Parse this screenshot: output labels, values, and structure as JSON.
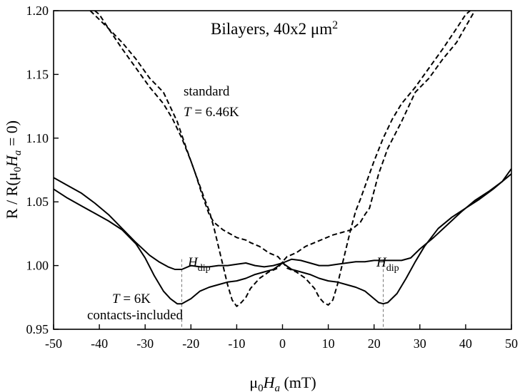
{
  "chart_data": {
    "type": "line",
    "title_parts": {
      "main": "Bilayers, 40x2 μm",
      "sup": "2"
    },
    "xlabel_parts": {
      "a": "μ",
      "b": "0",
      "c": "H",
      "d": "a",
      "e": " (mT)"
    },
    "ylabel_parts": {
      "a": "R / R(μ",
      "b": "0",
      "c": "H",
      "d": "a",
      "e": " = 0)"
    },
    "xlim": [
      -50,
      50
    ],
    "ylim": [
      0.95,
      1.2
    ],
    "xticks": [
      "-50",
      "-40",
      "-30",
      "-20",
      "-10",
      "0",
      "10",
      "20",
      "30",
      "40",
      "50"
    ],
    "yticks": [
      "0.95",
      "1.00",
      "1.05",
      "1.10",
      "1.15",
      "1.20"
    ],
    "xtick_values": [
      -50,
      -40,
      -30,
      -20,
      -10,
      0,
      10,
      20,
      30,
      40,
      50
    ],
    "ytick_values": [
      0.95,
      1.0,
      1.05,
      1.1,
      1.15,
      1.2
    ],
    "annotations": {
      "standard_label": "standard",
      "standard_temp": {
        "t": "T",
        "rest": " = 6.46K"
      },
      "contacts_temp": {
        "t": "T",
        "rest": " = 6K"
      },
      "contacts_label": "contacts-included",
      "hdip_main": "H",
      "hdip_sub": "dip"
    },
    "hdip_markers": [
      -22,
      22
    ],
    "series": [
      {
        "style": "dashed",
        "x": [
          -42,
          -38,
          -35,
          -32,
          -29,
          -26,
          -23,
          -21,
          -19,
          -17.5,
          -16,
          -15,
          -14,
          -13,
          -12,
          -11,
          -10,
          -9,
          -8,
          -7,
          -5,
          -3,
          -1,
          0,
          1,
          3,
          5,
          7,
          8,
          9,
          10,
          11,
          12,
          13,
          14,
          15,
          16,
          17,
          18,
          19,
          20,
          22,
          24,
          26,
          29,
          32,
          35,
          38,
          40,
          41
        ],
        "y": [
          1.2,
          1.186,
          1.175,
          1.162,
          1.147,
          1.136,
          1.113,
          1.092,
          1.072,
          1.055,
          1.04,
          1.034,
          1.031,
          1.028,
          1.026,
          1.024,
          1.022,
          1.021,
          1.02,
          1.018,
          1.015,
          1.01,
          1.007,
          1.003,
          0.998,
          0.995,
          0.99,
          0.982,
          0.975,
          0.971,
          0.969,
          0.973,
          0.985,
          1.0,
          1.015,
          1.03,
          1.043,
          1.052,
          1.062,
          1.072,
          1.082,
          1.1,
          1.115,
          1.127,
          1.14,
          1.155,
          1.17,
          1.186,
          1.197,
          1.2
        ]
      },
      {
        "style": "dashed",
        "x": [
          -41,
          -40,
          -38,
          -35,
          -32,
          -29,
          -26,
          -24,
          -22,
          -20,
          -19,
          -18,
          -17,
          -16,
          -15,
          -14,
          -13,
          -12,
          -11,
          -10,
          -9,
          -8,
          -7,
          -5,
          -3,
          -1,
          0,
          1,
          3,
          5,
          7,
          9,
          11,
          13,
          15,
          16,
          17,
          18,
          19,
          21,
          23,
          26,
          29,
          32,
          35,
          38,
          42
        ],
        "y": [
          1.2,
          1.197,
          1.186,
          1.17,
          1.155,
          1.14,
          1.127,
          1.115,
          1.1,
          1.082,
          1.072,
          1.062,
          1.052,
          1.043,
          1.03,
          1.015,
          1.0,
          0.985,
          0.973,
          0.968,
          0.971,
          0.975,
          0.982,
          0.99,
          0.995,
          0.998,
          1.003,
          1.007,
          1.01,
          1.015,
          1.018,
          1.021,
          1.024,
          1.026,
          1.028,
          1.031,
          1.034,
          1.04,
          1.045,
          1.072,
          1.092,
          1.113,
          1.136,
          1.147,
          1.162,
          1.175,
          1.2
        ]
      },
      {
        "style": "solid",
        "x": [
          -50,
          -47,
          -44,
          -41,
          -38,
          -35,
          -32,
          -29,
          -27,
          -25,
          -23.5,
          -22,
          -20,
          -18,
          -16,
          -14,
          -12,
          -10,
          -8,
          -6,
          -4,
          -2,
          0,
          2,
          4,
          6,
          8,
          10,
          12,
          14,
          16,
          18,
          20,
          22,
          24,
          26,
          28,
          30,
          33,
          36,
          39,
          42,
          45,
          48,
          50
        ],
        "y": [
          1.069,
          1.063,
          1.057,
          1.049,
          1.04,
          1.029,
          1.018,
          1.008,
          1.003,
          0.999,
          0.997,
          0.997,
          1.0,
          0.999,
          0.999,
          1.0,
          1.0,
          1.001,
          1.002,
          1.0,
          0.999,
          1.0,
          1.002,
          1.005,
          1.004,
          1.002,
          1.0,
          1.0,
          1.001,
          1.002,
          1.003,
          1.003,
          1.004,
          1.004,
          1.004,
          1.004,
          1.006,
          1.013,
          1.022,
          1.032,
          1.042,
          1.051,
          1.058,
          1.066,
          1.076
        ]
      },
      {
        "style": "solid",
        "x": [
          -50,
          -47,
          -44,
          -41,
          -38,
          -35,
          -32,
          -30,
          -28,
          -26,
          -24.5,
          -23,
          -22,
          -20,
          -18,
          -16,
          -14,
          -12,
          -10,
          -8,
          -6,
          -4,
          -2,
          0,
          2,
          4,
          6,
          8,
          10,
          12,
          14,
          16,
          18,
          20,
          21,
          22,
          23,
          25,
          27,
          29,
          31,
          34,
          37,
          40,
          43,
          46,
          48,
          50
        ],
        "y": [
          1.06,
          1.053,
          1.047,
          1.041,
          1.035,
          1.028,
          1.017,
          1.006,
          0.992,
          0.98,
          0.974,
          0.97,
          0.97,
          0.974,
          0.98,
          0.983,
          0.985,
          0.987,
          0.988,
          0.99,
          0.993,
          0.995,
          0.997,
          1.002,
          0.997,
          0.995,
          0.993,
          0.99,
          0.988,
          0.987,
          0.985,
          0.983,
          0.98,
          0.974,
          0.971,
          0.97,
          0.971,
          0.978,
          0.99,
          1.003,
          1.015,
          1.029,
          1.038,
          1.045,
          1.052,
          1.06,
          1.066,
          1.072
        ]
      }
    ]
  }
}
